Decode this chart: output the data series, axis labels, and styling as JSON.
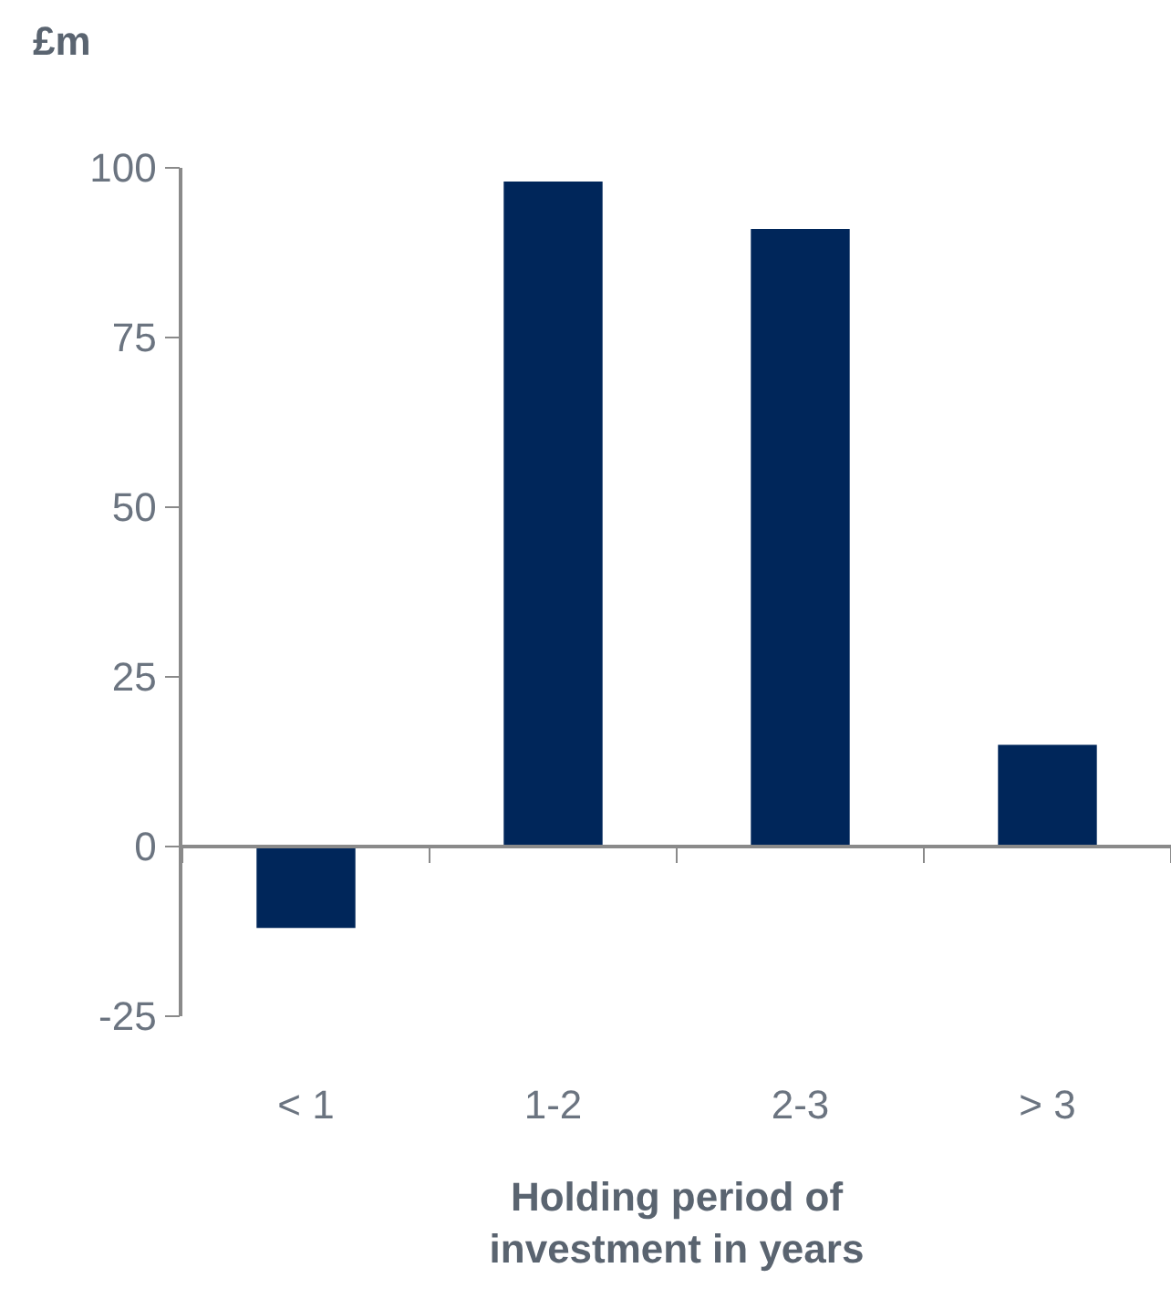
{
  "chart_data": {
    "type": "bar",
    "ylabel": "£m",
    "xlabel": "Holding period of investment in years",
    "categories": [
      "< 1",
      "1-2",
      "2-3",
      "> 3"
    ],
    "values": [
      -12,
      98,
      91,
      15
    ],
    "color": "#00265a",
    "ylim": [
      -25,
      100
    ],
    "yticks": [
      -25,
      0,
      25,
      50,
      75,
      100
    ],
    "legend": false
  }
}
